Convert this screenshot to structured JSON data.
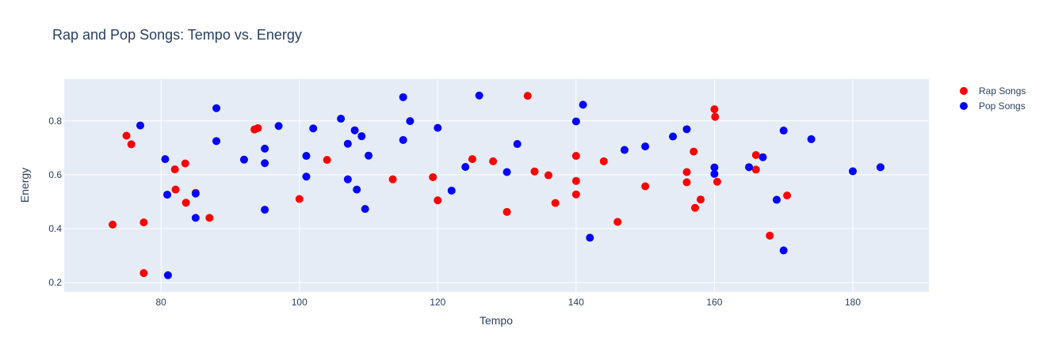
{
  "chart_data": {
    "type": "scatter",
    "title": "Rap and Pop Songs: Tempo vs. Energy",
    "xlabel": "Tempo",
    "ylabel": "Energy",
    "xlim": [
      66,
      191
    ],
    "ylim": [
      0.165,
      0.955
    ],
    "xticks": [
      80,
      100,
      120,
      140,
      160,
      180
    ],
    "yticks": [
      0.2,
      0.4,
      0.6,
      0.8
    ],
    "grid": true,
    "legend_position": "top-right",
    "plot_bg": "#e5ecf6",
    "series": [
      {
        "name": "Rap Songs",
        "color": "#ff0000",
        "points": [
          [
            73,
            0.415
          ],
          [
            75,
            0.745
          ],
          [
            75.7,
            0.713
          ],
          [
            77.5,
            0.423
          ],
          [
            77.5,
            0.235
          ],
          [
            82,
            0.62
          ],
          [
            82.1,
            0.545
          ],
          [
            83.5,
            0.642
          ],
          [
            83.6,
            0.496
          ],
          [
            85,
            0.533
          ],
          [
            87,
            0.44
          ],
          [
            93.5,
            0.768
          ],
          [
            94,
            0.773
          ],
          [
            100,
            0.51
          ],
          [
            104,
            0.655
          ],
          [
            113.5,
            0.583
          ],
          [
            119.3,
            0.591
          ],
          [
            120,
            0.505
          ],
          [
            125,
            0.658
          ],
          [
            128,
            0.65
          ],
          [
            130,
            0.462
          ],
          [
            133,
            0.893
          ],
          [
            134,
            0.612
          ],
          [
            136,
            0.598
          ],
          [
            137,
            0.495
          ],
          [
            140,
            0.67
          ],
          [
            140,
            0.577
          ],
          [
            140,
            0.527
          ],
          [
            144,
            0.65
          ],
          [
            146,
            0.425
          ],
          [
            150,
            0.557
          ],
          [
            156,
            0.61
          ],
          [
            156,
            0.572
          ],
          [
            157,
            0.686
          ],
          [
            157.2,
            0.477
          ],
          [
            158,
            0.508
          ],
          [
            160,
            0.843
          ],
          [
            160.1,
            0.815
          ],
          [
            160.4,
            0.574
          ],
          [
            166,
            0.673
          ],
          [
            166,
            0.619
          ],
          [
            168,
            0.374
          ],
          [
            170.5,
            0.523
          ]
        ]
      },
      {
        "name": "Pop Songs",
        "color": "#0000ff",
        "points": [
          [
            77,
            0.783
          ],
          [
            80.6,
            0.658
          ],
          [
            80.9,
            0.526
          ],
          [
            81,
            0.227
          ],
          [
            85,
            0.53
          ],
          [
            85,
            0.44
          ],
          [
            88,
            0.847
          ],
          [
            88,
            0.725
          ],
          [
            92,
            0.656
          ],
          [
            95,
            0.697
          ],
          [
            95,
            0.643
          ],
          [
            95,
            0.47
          ],
          [
            97,
            0.781
          ],
          [
            101,
            0.67
          ],
          [
            101,
            0.593
          ],
          [
            102,
            0.772
          ],
          [
            106,
            0.808
          ],
          [
            107,
            0.715
          ],
          [
            107,
            0.583
          ],
          [
            108,
            0.765
          ],
          [
            108.3,
            0.545
          ],
          [
            109,
            0.743
          ],
          [
            109.5,
            0.473
          ],
          [
            110,
            0.671
          ],
          [
            115,
            0.888
          ],
          [
            115,
            0.729
          ],
          [
            116,
            0.799
          ],
          [
            120,
            0.774
          ],
          [
            122,
            0.541
          ],
          [
            124,
            0.629
          ],
          [
            126,
            0.894
          ],
          [
            130,
            0.61
          ],
          [
            131.5,
            0.714
          ],
          [
            140,
            0.798
          ],
          [
            141,
            0.86
          ],
          [
            142,
            0.366
          ],
          [
            147,
            0.692
          ],
          [
            150,
            0.705
          ],
          [
            154,
            0.742
          ],
          [
            156,
            0.769
          ],
          [
            160,
            0.627
          ],
          [
            160,
            0.603
          ],
          [
            165,
            0.628
          ],
          [
            167,
            0.665
          ],
          [
            169,
            0.507
          ],
          [
            170,
            0.764
          ],
          [
            170,
            0.319
          ],
          [
            174,
            0.732
          ],
          [
            180,
            0.613
          ],
          [
            184,
            0.628
          ]
        ]
      }
    ]
  }
}
